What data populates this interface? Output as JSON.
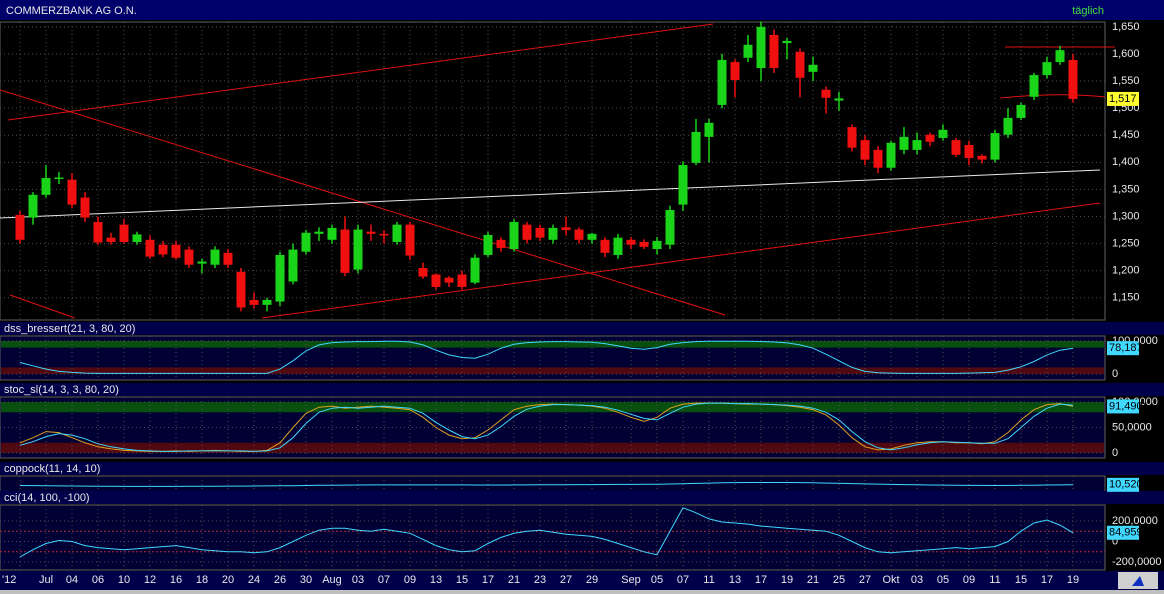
{
  "chart_data": [
    {
      "type": "candlestick",
      "title": "COMMERZBANK AG O.N.",
      "period": "täglich",
      "categories": [
        "'12",
        null,
        "Jul",
        null,
        "04",
        null,
        "06",
        null,
        "10",
        null,
        "12",
        null,
        "16",
        null,
        "18",
        null,
        "20",
        null,
        "24",
        null,
        "26",
        null,
        "30",
        null,
        "Aug",
        null,
        "03",
        null,
        "07",
        null,
        "09",
        null,
        "13",
        null,
        "15",
        null,
        "17",
        null,
        "21",
        null,
        "23",
        null,
        "27",
        null,
        "29",
        null,
        null,
        "Sep",
        null,
        "05",
        null,
        "07",
        null,
        "11",
        null,
        "13",
        null,
        "17",
        null,
        "19",
        null,
        "21",
        null,
        "25",
        null,
        "27",
        null,
        "Okt",
        null,
        "03",
        null,
        "05",
        null,
        "09",
        null,
        "11",
        null,
        "15",
        null,
        "17",
        null,
        "19"
      ],
      "open": [
        1303,
        1298,
        1340,
        1372,
        1368,
        1335,
        1290,
        1261,
        1285,
        1253,
        1257,
        1248,
        1248,
        1239,
        1213,
        1211,
        1233,
        1198,
        1146,
        1137,
        1143,
        1180,
        1235,
        1268,
        1257,
        1276,
        1202,
        1272,
        1268,
        1253,
        1285,
        1205,
        1193,
        1187,
        1193,
        1178,
        1229,
        1257,
        1240,
        1285,
        1279,
        1257,
        1280,
        1276,
        1257,
        1257,
        1229,
        1257,
        1253,
        1240,
        1248,
        1322,
        1399,
        1447,
        1506,
        1585,
        1593,
        1574,
        1635,
        1620,
        1604,
        1567,
        1534,
        1514,
        1465,
        1441,
        1423,
        1390,
        1423,
        1423,
        1451,
        1445,
        1441,
        1432,
        1412,
        1405,
        1451,
        1482,
        1521,
        1561,
        1585,
        1589
      ],
      "high": [
        1310,
        1345,
        1395,
        1382,
        1380,
        1345,
        1300,
        1270,
        1295,
        1272,
        1265,
        1255,
        1255,
        1245,
        1222,
        1245,
        1240,
        1205,
        1160,
        1150,
        1235,
        1250,
        1275,
        1280,
        1285,
        1300,
        1285,
        1285,
        1275,
        1290,
        1290,
        1215,
        1195,
        1190,
        1200,
        1230,
        1272,
        1262,
        1295,
        1290,
        1285,
        1285,
        1300,
        1280,
        1270,
        1262,
        1268,
        1262,
        1258,
        1262,
        1320,
        1402,
        1480,
        1480,
        1600,
        1590,
        1635,
        1660,
        1645,
        1630,
        1610,
        1595,
        1540,
        1530,
        1470,
        1450,
        1430,
        1440,
        1465,
        1455,
        1455,
        1470,
        1445,
        1440,
        1415,
        1460,
        1500,
        1510,
        1565,
        1595,
        1615,
        1600
      ],
      "low": [
        1250,
        1285,
        1335,
        1360,
        1315,
        1290,
        1248,
        1248,
        1250,
        1248,
        1222,
        1225,
        1220,
        1205,
        1195,
        1205,
        1205,
        1125,
        1130,
        1125,
        1135,
        1175,
        1230,
        1255,
        1250,
        1190,
        1195,
        1255,
        1250,
        1248,
        1220,
        1185,
        1165,
        1170,
        1165,
        1175,
        1225,
        1235,
        1235,
        1250,
        1255,
        1250,
        1265,
        1250,
        1250,
        1225,
        1222,
        1240,
        1240,
        1230,
        1240,
        1310,
        1395,
        1400,
        1500,
        1520,
        1585,
        1550,
        1565,
        1590,
        1520,
        1550,
        1490,
        1495,
        1420,
        1395,
        1380,
        1385,
        1415,
        1415,
        1430,
        1440,
        1410,
        1395,
        1398,
        1400,
        1445,
        1478,
        1515,
        1555,
        1580,
        1510
      ],
      "close": [
        1257,
        1340,
        1371,
        1372,
        1322,
        1298,
        1252,
        1253,
        1253,
        1267,
        1226,
        1230,
        1224,
        1211,
        1217,
        1239,
        1211,
        1132,
        1137,
        1146,
        1229,
        1239,
        1270,
        1272,
        1279,
        1196,
        1276,
        1268,
        1265,
        1285,
        1228,
        1189,
        1170,
        1178,
        1170,
        1224,
        1266,
        1242,
        1290,
        1257,
        1261,
        1279,
        1275,
        1257,
        1268,
        1233,
        1261,
        1248,
        1244,
        1255,
        1312,
        1395,
        1456,
        1473,
        1589,
        1552,
        1617,
        1650,
        1574,
        1624,
        1556,
        1580,
        1519,
        1518,
        1427,
        1405,
        1390,
        1436,
        1447,
        1441,
        1438,
        1460,
        1414,
        1408,
        1405,
        1454,
        1482,
        1506,
        1561,
        1585,
        1607,
        1517
      ],
      "up_color": "#19d419",
      "down_color": "#f01010",
      "ylim": [
        1109,
        1659
      ],
      "yticks": [
        {
          "value": 1650,
          "label": "1,650"
        },
        {
          "value": 1600,
          "label": "1,600"
        },
        {
          "value": 1550,
          "label": "1,550"
        },
        {
          "value": 1500,
          "label": "1,500"
        },
        {
          "value": 1450,
          "label": "1,450"
        },
        {
          "value": 1400,
          "label": "1,400"
        },
        {
          "value": 1350,
          "label": "1,350"
        },
        {
          "value": 1300,
          "label": "1,300"
        },
        {
          "value": 1250,
          "label": "1,250"
        },
        {
          "value": 1200,
          "label": "1,200"
        },
        {
          "value": 1150,
          "label": "1,150"
        }
      ],
      "last_value": {
        "value": 1517,
        "label": "1,517"
      },
      "grid": true
    },
    {
      "type": "line",
      "title": "dss_bressert(21, 3, 80, 20)",
      "series": [
        {
          "color": "#40d8ff",
          "values": [
            35,
            25,
            15,
            8,
            5,
            3,
            2,
            2,
            2,
            2,
            2,
            2,
            2,
            2,
            2,
            2,
            2,
            2,
            2,
            2,
            15,
            40,
            70,
            88,
            95,
            97,
            98,
            98,
            99,
            99,
            97,
            88,
            72,
            58,
            50,
            48,
            60,
            78,
            90,
            95,
            97,
            98,
            98,
            97,
            96,
            92,
            85,
            78,
            75,
            80,
            90,
            95,
            98,
            99,
            99,
            99,
            99,
            98,
            97,
            94,
            88,
            78,
            60,
            40,
            20,
            8,
            4,
            3,
            2,
            2,
            2,
            2,
            2,
            3,
            4,
            5,
            12,
            22,
            38,
            58,
            72,
            78.1871
          ]
        }
      ],
      "ylim": [
        -18,
        115
      ],
      "yticks": [
        0,
        {
          "value": 100,
          "label": "100,0000"
        }
      ],
      "bands": [
        {
          "from": 80,
          "to": 100,
          "color": "#0b5e0b"
        },
        {
          "from": 0,
          "to": 20,
          "color": "#5e0b0b"
        }
      ],
      "last_value": {
        "value": 78.1871,
        "label": "78,1871"
      }
    },
    {
      "type": "line",
      "title": "stoc_sl(14, 3, 3, 80, 20)",
      "series": [
        {
          "color": "#e0a020",
          "values": [
            20,
            30,
            42,
            40,
            30,
            20,
            12,
            8,
            5,
            4,
            3,
            3,
            4,
            3,
            4,
            5,
            4,
            3,
            3,
            5,
            20,
            50,
            78,
            90,
            92,
            88,
            90,
            92,
            90,
            88,
            85,
            70,
            50,
            35,
            28,
            30,
            45,
            65,
            85,
            92,
            95,
            96,
            95,
            94,
            92,
            88,
            80,
            70,
            62,
            70,
            88,
            96,
            98,
            98,
            98,
            97,
            96,
            96,
            95,
            93,
            90,
            85,
            75,
            55,
            30,
            12,
            6,
            8,
            15,
            20,
            22,
            22,
            20,
            20,
            18,
            22,
            40,
            65,
            85,
            95,
            97,
            91.4901
          ]
        },
        {
          "color": "#40d8ff",
          "values": [
            15,
            22,
            32,
            38,
            35,
            28,
            18,
            12,
            8,
            5,
            4,
            3,
            3,
            4,
            4,
            4,
            4,
            4,
            3,
            4,
            10,
            30,
            58,
            80,
            88,
            90,
            88,
            90,
            92,
            90,
            88,
            78,
            60,
            45,
            32,
            28,
            35,
            52,
            72,
            86,
            92,
            95,
            95,
            94,
            93,
            90,
            84,
            76,
            68,
            65,
            78,
            90,
            96,
            98,
            98,
            97,
            97,
            96,
            95,
            94,
            92,
            88,
            80,
            65,
            42,
            22,
            10,
            6,
            10,
            16,
            20,
            22,
            21,
            20,
            19,
            19,
            28,
            50,
            72,
            88,
            96,
            94
          ]
        }
      ],
      "ylim": [
        -10,
        110
      ],
      "yticks": [
        0,
        {
          "value": 50,
          "label": "50,0000"
        },
        {
          "value": 100,
          "label": "100,0000"
        }
      ],
      "bands": [
        {
          "from": 80,
          "to": 100,
          "color": "#0b5e0b"
        },
        {
          "from": 0,
          "to": 20,
          "color": "#5e0b0b"
        }
      ],
      "last_value": {
        "value": 91.4901,
        "label": "91,4901"
      }
    },
    {
      "type": "line",
      "title": "coppock(11, 14, 10)",
      "series": [
        {
          "color": "#40d8ff",
          "values": [
            0,
            -2,
            -4,
            -6,
            -8,
            -10,
            -12,
            -13,
            -14,
            -15,
            -15,
            -15,
            -14,
            -13,
            -12,
            -11,
            -10,
            -9,
            -8,
            -7,
            -5,
            -3,
            0,
            3,
            5,
            7,
            8,
            9,
            10,
            10,
            10,
            10,
            10,
            9,
            9,
            8,
            8,
            8,
            9,
            10,
            11,
            12,
            13,
            14,
            15,
            16,
            17,
            18,
            19,
            21,
            24,
            28,
            33,
            38,
            42,
            45,
            47,
            48,
            48,
            47,
            45,
            42,
            38,
            34,
            30,
            26,
            22,
            18,
            14,
            11,
            8,
            6,
            4,
            2,
            1,
            0,
            1,
            3,
            5,
            8,
            10,
            10.5201
          ]
        }
      ],
      "ylim": [
        -150,
        150
      ],
      "yticks": [],
      "last_value": {
        "value": 10.5201,
        "label": "10,5201"
      }
    },
    {
      "type": "line",
      "title": "cci(14, 100, -100)",
      "series": [
        {
          "color": "#40d8ff",
          "values": [
            -150,
            -80,
            -20,
            10,
            0,
            -40,
            -60,
            -70,
            -80,
            -70,
            -60,
            -50,
            -40,
            -60,
            -80,
            -90,
            -100,
            -100,
            -110,
            -100,
            -60,
            0,
            60,
            110,
            130,
            130,
            110,
            100,
            120,
            100,
            80,
            20,
            -40,
            -80,
            -100,
            -90,
            -20,
            40,
            80,
            100,
            110,
            90,
            70,
            60,
            50,
            20,
            -20,
            -60,
            -100,
            -130,
            100,
            330,
            280,
            220,
            190,
            180,
            170,
            150,
            140,
            130,
            120,
            110,
            100,
            60,
            0,
            -60,
            -100,
            -110,
            -100,
            -90,
            -80,
            -70,
            -60,
            -70,
            -60,
            -50,
            0,
            100,
            180,
            210,
            160,
            84.9595
          ]
        }
      ],
      "ylim": [
        -278,
        356
      ],
      "yticks": [
        {
          "value": 200,
          "label": "200,0000"
        },
        0,
        {
          "value": -200,
          "label": "-200,0000"
        }
      ],
      "levels": [
        100,
        -100
      ],
      "last_value": {
        "value": 84.9595,
        "label": "84,9595"
      }
    }
  ]
}
